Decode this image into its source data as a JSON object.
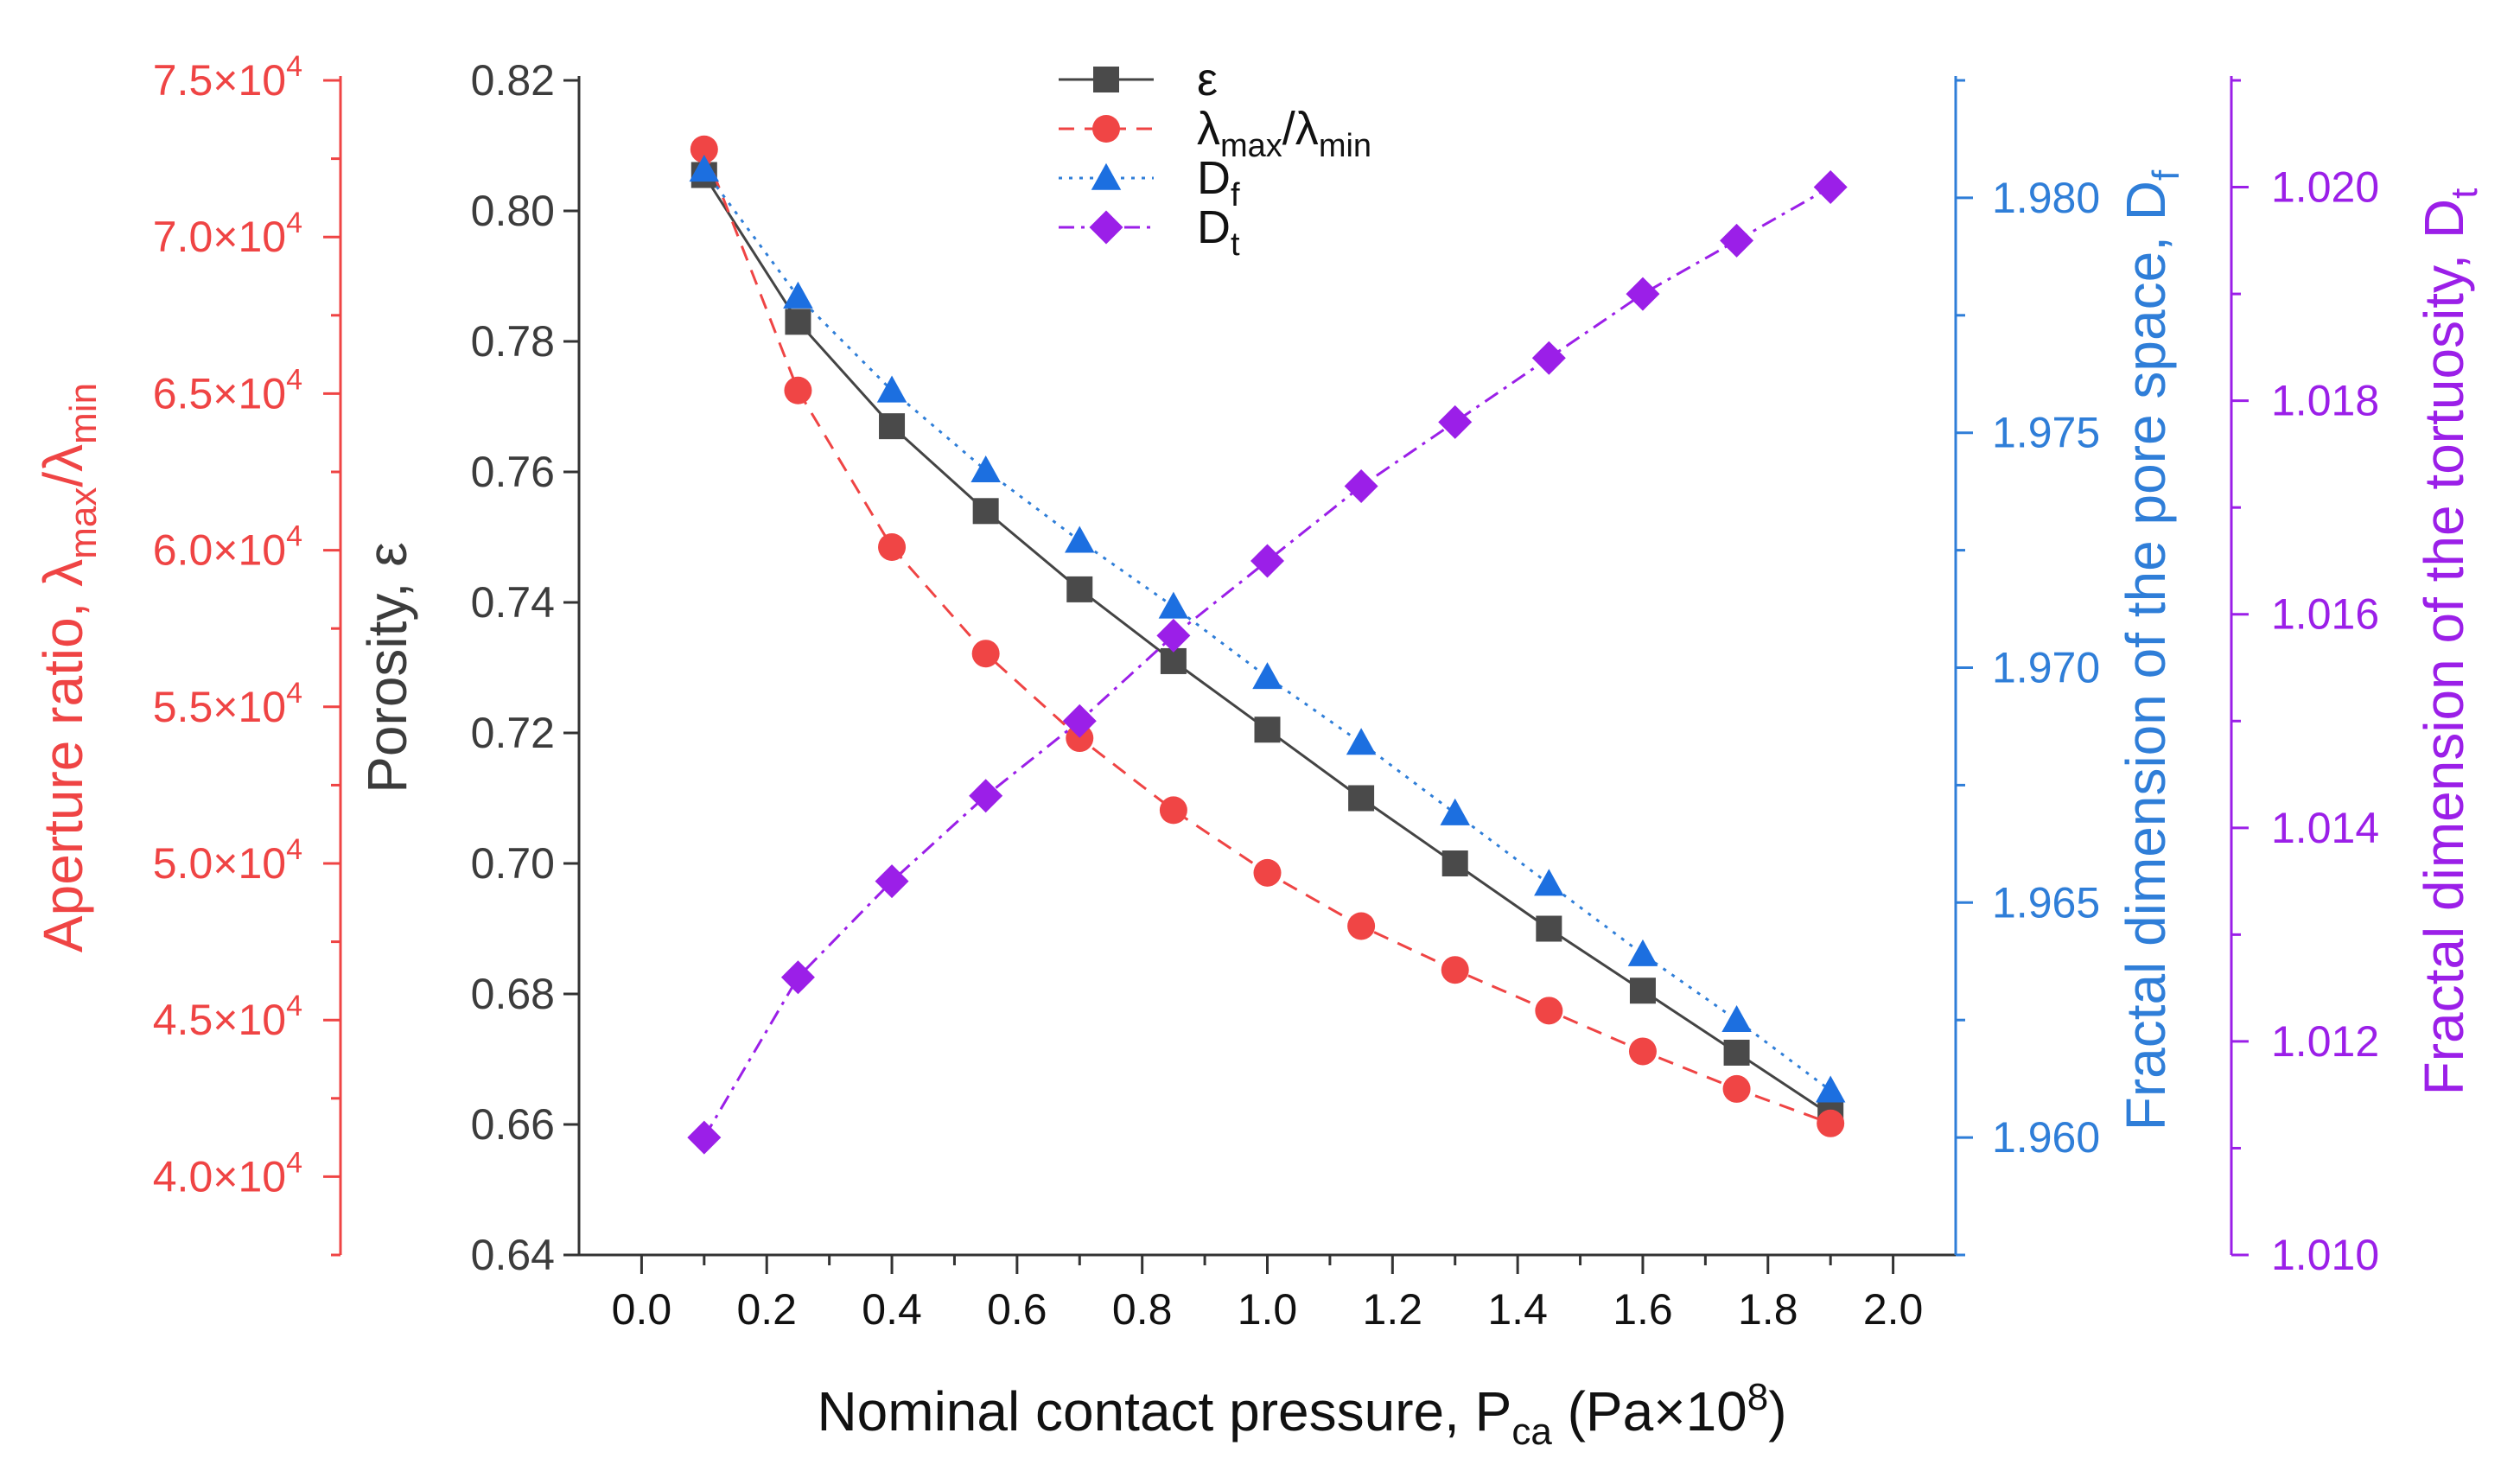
{
  "chart_data": {
    "type": "line",
    "x": [
      0.1,
      0.25,
      0.4,
      0.55,
      0.7,
      0.85,
      1.0,
      1.15,
      1.3,
      1.45,
      1.6,
      1.75,
      1.9
    ],
    "xlabel": {
      "main": "Nominal contact pressure, P",
      "sub": "ca",
      "tail": " (Pa×10",
      "sup": "8",
      "end": ")"
    },
    "xlim": [
      -0.1,
      2.1
    ],
    "xticks": [
      "0.0",
      "0.2",
      "0.4",
      "0.6",
      "0.8",
      "1.0",
      "1.2",
      "1.4",
      "1.6",
      "1.8",
      "2.0"
    ],
    "axes": {
      "eps": {
        "label": "Porosity, ε",
        "ylim": [
          0.64,
          0.82
        ],
        "ticks": [
          "0.64",
          "0.66",
          "0.68",
          "0.70",
          "0.72",
          "0.74",
          "0.76",
          "0.78",
          "0.80",
          "0.82"
        ],
        "color": "#444444"
      },
      "lam": {
        "label": {
          "main": "Aperture ratio, λ",
          "sub1": "max",
          "mid": "/λ",
          "sub2": "min"
        },
        "ylim": [
          37500,
          75000
        ],
        "ticks": [
          {
            "v": 40000,
            "base": "4.0×10",
            "exp": "4"
          },
          {
            "v": 45000,
            "base": "4.5×10",
            "exp": "4"
          },
          {
            "v": 50000,
            "base": "5.0×10",
            "exp": "4"
          },
          {
            "v": 55000,
            "base": "5.5×10",
            "exp": "4"
          },
          {
            "v": 60000,
            "base": "6.0×10",
            "exp": "4"
          },
          {
            "v": 65000,
            "base": "6.5×10",
            "exp": "4"
          },
          {
            "v": 70000,
            "base": "7.0×10",
            "exp": "4"
          },
          {
            "v": 75000,
            "base": "7.5×10",
            "exp": "4"
          }
        ],
        "color": "#EF4444"
      },
      "df": {
        "label": {
          "main": "Fractal dimension of the pore space, D",
          "sub": "f"
        },
        "ylim": [
          1.9575,
          1.9825
        ],
        "ticks": [
          "1.960",
          "1.965",
          "1.970",
          "1.975",
          "1.980"
        ],
        "color": "#2F7ED8"
      },
      "dt": {
        "label": {
          "main": "Fractal dimension of the tortuosity, D",
          "sub": "t"
        },
        "ylim": [
          1.01,
          1.021
        ],
        "ticks": [
          "1.010",
          "1.012",
          "1.014",
          "1.016",
          "1.018",
          "1.020"
        ],
        "color": "#9B1FE8"
      }
    },
    "series": [
      {
        "key": "eps",
        "name": "ε",
        "axis": "eps",
        "marker": "square",
        "dash": "solid",
        "color": "#444444",
        "markerColor": "#4A4A4A",
        "values": [
          0.8055,
          0.783,
          0.767,
          0.754,
          0.742,
          0.731,
          0.7205,
          0.71,
          0.7,
          0.69,
          0.6805,
          0.671,
          0.6615
        ]
      },
      {
        "key": "lam",
        "name": "λmax/λmin",
        "axis": "lam",
        "marker": "circle",
        "dash": "dashed",
        "color": "#EF4444",
        "markerColor": "#F04545",
        "values": [
          72800,
          65100,
          60100,
          56700,
          54000,
          51700,
          49700,
          48000,
          46600,
          45300,
          44000,
          42800,
          41700
        ]
      },
      {
        "key": "df",
        "name": "Df",
        "axis": "df",
        "marker": "triangle",
        "dash": "dotted",
        "color": "#2F7ED8",
        "markerColor": "#1C6FE0",
        "values": [
          1.9806,
          1.9779,
          1.9759,
          1.9742,
          1.9727,
          1.9713,
          1.9698,
          1.9684,
          1.9669,
          1.9654,
          1.9639,
          1.9625,
          1.961
        ]
      },
      {
        "key": "dt",
        "name": "Dt",
        "axis": "dt",
        "marker": "diamond",
        "dash": "dashdot",
        "color": "#9B1FE8",
        "markerColor": "#9B1FE8",
        "values": [
          1.0111,
          1.0126,
          1.0135,
          1.0143,
          1.015,
          1.0158,
          1.0165,
          1.0172,
          1.0178,
          1.0184,
          1.019,
          1.0195,
          1.02
        ]
      }
    ],
    "legend": {
      "placement": "top-center",
      "entries": [
        {
          "key": "eps",
          "main": "ε",
          "sub": ""
        },
        {
          "key": "lam",
          "main": "λ",
          "sub": "max",
          "mid": "/λ",
          "sub2": "min"
        },
        {
          "key": "df",
          "main": "D",
          "sub": "f"
        },
        {
          "key": "dt",
          "main": "D",
          "sub": "t"
        }
      ]
    }
  }
}
